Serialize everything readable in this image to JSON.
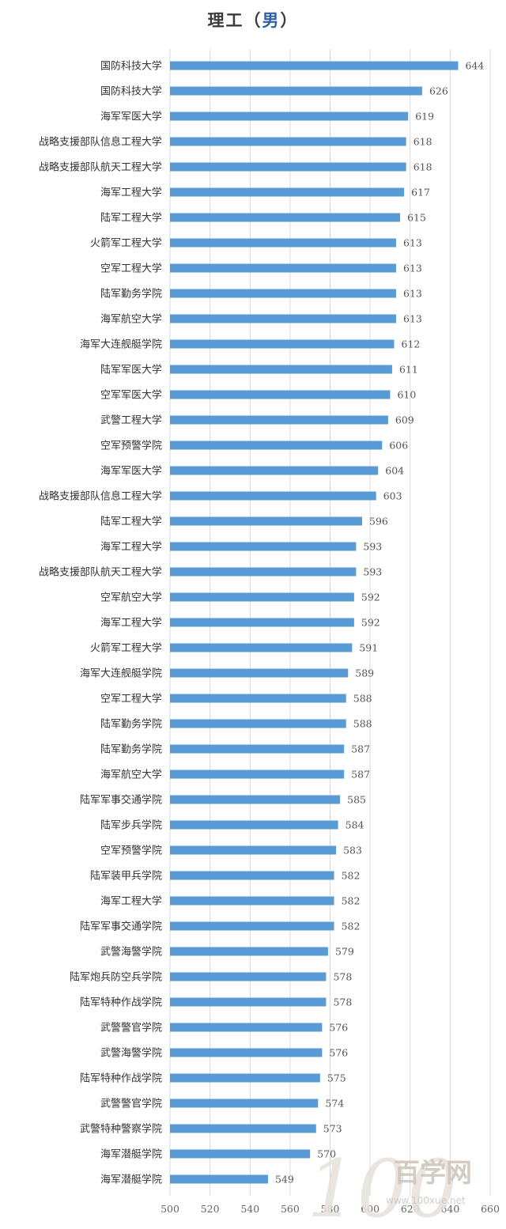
{
  "chart_data": {
    "type": "bar",
    "orientation": "horizontal",
    "title_prefix": "理工（",
    "title_accent": "男",
    "title_suffix": "）",
    "categories": [
      "国防科技大学",
      "国防科技大学",
      "海军军医大学",
      "战略支援部队信息工程大学",
      "战略支援部队航天工程大学",
      "海军工程大学",
      "陆军工程大学",
      "火箭军工程大学",
      "空军工程大学",
      "陆军勤务学院",
      "海军航空大学",
      "海军大连舰艇学院",
      "陆军军医大学",
      "空军军医大学",
      "武警工程大学",
      "空军预警学院",
      "海军军医大学",
      "战略支援部队信息工程大学",
      "陆军工程大学",
      "海军工程大学",
      "战略支援部队航天工程大学",
      "空军航空大学",
      "海军工程大学",
      "火箭军工程大学",
      "海军大连舰艇学院",
      "空军工程大学",
      "陆军勤务学院",
      "陆军勤务学院",
      "海军航空大学",
      "陆军军事交通学院",
      "陆军步兵学院",
      "空军预警学院",
      "陆军装甲兵学院",
      "海军工程大学",
      "陆军军事交通学院",
      "武警海警学院",
      "陆军炮兵防空兵学院",
      "陆军特种作战学院",
      "武警警官学院",
      "武警海警学院",
      "陆军特种作战学院",
      "武警警官学院",
      "武警特种警察学院",
      "海军潜艇学院",
      "海军潜艇学院"
    ],
    "values": [
      644,
      626,
      619,
      618,
      618,
      617,
      615,
      613,
      613,
      613,
      613,
      612,
      611,
      610,
      609,
      606,
      604,
      603,
      596,
      593,
      593,
      592,
      592,
      591,
      589,
      588,
      588,
      587,
      587,
      585,
      584,
      583,
      582,
      582,
      582,
      579,
      578,
      578,
      576,
      576,
      575,
      574,
      573,
      570,
      549
    ],
    "xlim": [
      500,
      660
    ],
    "xticks": [
      "500",
      "520",
      "540",
      "560",
      "580",
      "600",
      "620",
      "640",
      "660"
    ],
    "bar_color": "#5b9bd5",
    "grid": true
  },
  "watermark": {
    "number": "100",
    "text": "百学网",
    "url": "www.100xue.net"
  }
}
